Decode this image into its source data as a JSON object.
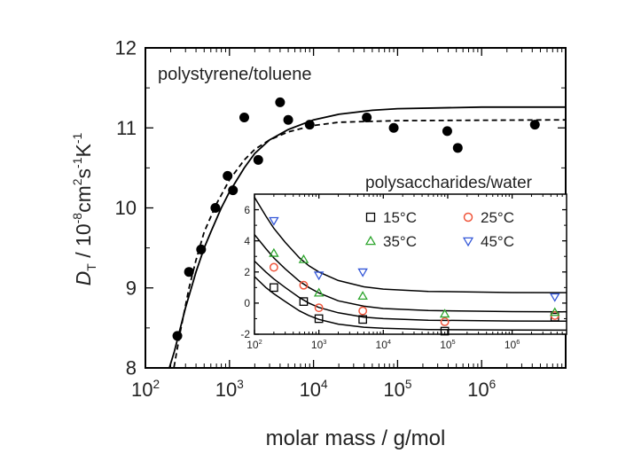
{
  "chart_data": [
    {
      "type": "scatter",
      "title": "polystyrene/toluene",
      "xlabel": "molar mass / g/mol",
      "ylabel": {
        "symbol": "D",
        "sub": "T",
        "sep": " / 10",
        "exp1": "-8",
        "unit1": "cm",
        "exp2": "2",
        "unit2": "s",
        "exp3": "-1",
        "unit3": "K",
        "exp4": "-1"
      },
      "x_scale": "log",
      "xlim": [
        100,
        10000000
      ],
      "ylim": [
        8,
        12
      ],
      "x_ticks": [
        {
          "base": "10",
          "exp": "2",
          "value": 100
        },
        {
          "base": "10",
          "exp": "3",
          "value": 1000
        },
        {
          "base": "10",
          "exp": "4",
          "value": 10000
        },
        {
          "base": "10",
          "exp": "5",
          "value": 100000
        },
        {
          "base": "10",
          "exp": "6",
          "value": 1000000
        }
      ],
      "y_ticks": [
        {
          "label": "8",
          "value": 8
        },
        {
          "label": "9",
          "value": 9
        },
        {
          "label": "10",
          "value": 10
        },
        {
          "label": "11",
          "value": 11
        },
        {
          "label": "12",
          "value": 12
        }
      ],
      "series": [
        {
          "marker": "filled-circle",
          "color": "#000000",
          "points": [
            [
              240,
              8.4
            ],
            [
              330,
              9.2
            ],
            [
              460,
              9.48
            ],
            [
              680,
              10.0
            ],
            [
              950,
              10.4
            ],
            [
              1100,
              10.22
            ],
            [
              1500,
              11.13
            ],
            [
              2200,
              10.6
            ],
            [
              4000,
              11.32
            ],
            [
              5000,
              11.1
            ],
            [
              9000,
              11.04
            ],
            [
              43000,
              11.13
            ],
            [
              90000,
              11.0
            ],
            [
              390000,
              10.96
            ],
            [
              520000,
              10.75
            ],
            [
              4300000,
              11.04
            ]
          ]
        }
      ],
      "curves": [
        {
          "style": "solid",
          "color": "#000000",
          "points": [
            [
              180,
              7.9
            ],
            [
              220,
              8.2
            ],
            [
              300,
              8.75
            ],
            [
              400,
              9.2
            ],
            [
              500,
              9.5
            ],
            [
              600,
              9.7
            ],
            [
              800,
              10.0
            ],
            [
              1000,
              10.2
            ],
            [
              1500,
              10.5
            ],
            [
              2000,
              10.68
            ],
            [
              3000,
              10.85
            ],
            [
              5000,
              10.98
            ],
            [
              10000,
              11.1
            ],
            [
              20000,
              11.17
            ],
            [
              50000,
              11.22
            ],
            [
              100000,
              11.24
            ],
            [
              1000000,
              11.26
            ],
            [
              10000000,
              11.26
            ]
          ]
        },
        {
          "style": "dashed",
          "color": "#000000",
          "points": [
            [
              210,
              7.9
            ],
            [
              260,
              8.45
            ],
            [
              330,
              9.0
            ],
            [
              400,
              9.35
            ],
            [
              500,
              9.7
            ],
            [
              700,
              10.05
            ],
            [
              1000,
              10.35
            ],
            [
              1500,
              10.6
            ],
            [
              2000,
              10.73
            ],
            [
              3000,
              10.85
            ],
            [
              5000,
              10.95
            ],
            [
              10000,
              11.03
            ],
            [
              20000,
              11.07
            ],
            [
              100000,
              11.09
            ],
            [
              10000000,
              11.1
            ]
          ]
        }
      ]
    },
    {
      "type": "scatter",
      "title": "polysaccharides/water",
      "x_scale": "log",
      "xlim": [
        100,
        7000000
      ],
      "ylim": [
        -2,
        7
      ],
      "x_ticks": [
        {
          "base": "10",
          "exp": "2",
          "value": 100
        },
        {
          "base": "10",
          "exp": "3",
          "value": 1000
        },
        {
          "base": "10",
          "exp": "4",
          "value": 10000
        },
        {
          "base": "10",
          "exp": "5",
          "value": 100000
        },
        {
          "base": "10",
          "exp": "6",
          "value": 1000000
        }
      ],
      "y_ticks": [
        {
          "label": "-2",
          "value": -2
        },
        {
          "label": "0",
          "value": 0
        },
        {
          "label": "2",
          "value": 2
        },
        {
          "label": "4",
          "value": 4
        },
        {
          "label": "6",
          "value": 6
        }
      ],
      "legend": {
        "placement": "top-right",
        "columns": 2
      },
      "series": [
        {
          "name": "15°C",
          "marker": "square",
          "color": "#000000",
          "points": [
            [
              200,
              1.0
            ],
            [
              580,
              0.1
            ],
            [
              1000,
              -1.0
            ],
            [
              4800,
              -1.05
            ],
            [
              90000,
              -1.8
            ],
            [
              4600000,
              -0.9
            ]
          ]
        },
        {
          "name": "25°C",
          "marker": "circle",
          "color": "#f0563c",
          "points": [
            [
              200,
              2.3
            ],
            [
              580,
              1.15
            ],
            [
              1000,
              -0.3
            ],
            [
              4800,
              -0.5
            ],
            [
              90000,
              -1.2
            ],
            [
              4600000,
              -0.8
            ]
          ]
        },
        {
          "name": "35°C",
          "marker": "triangle-up",
          "color": "#2ca42c",
          "points": [
            [
              200,
              3.2
            ],
            [
              580,
              2.8
            ],
            [
              1000,
              0.65
            ],
            [
              4800,
              0.45
            ],
            [
              90000,
              -0.7
            ],
            [
              4600000,
              -0.6
            ]
          ]
        },
        {
          "name": "45°C",
          "marker": "triangle-down",
          "color": "#3558d8",
          "points": [
            [
              200,
              5.3
            ],
            [
              1000,
              1.8
            ],
            [
              4800,
              2.0
            ],
            [
              4600000,
              0.4
            ]
          ]
        }
      ],
      "curves": [
        {
          "style": "solid",
          "color": "#000000",
          "points": [
            [
              100,
              6.8
            ],
            [
              150,
              5.6
            ],
            [
              200,
              4.8
            ],
            [
              300,
              3.9
            ],
            [
              500,
              2.9
            ],
            [
              700,
              2.4
            ],
            [
              1000,
              2.0
            ],
            [
              2000,
              1.45
            ],
            [
              5000,
              1.05
            ],
            [
              10000,
              0.9
            ],
            [
              50000,
              0.75
            ],
            [
              1000000,
              0.68
            ],
            [
              7000000,
              0.67
            ]
          ]
        },
        {
          "style": "solid",
          "color": "#000000",
          "points": [
            [
              100,
              4.4
            ],
            [
              150,
              3.5
            ],
            [
              200,
              2.9
            ],
            [
              300,
              2.2
            ],
            [
              500,
              1.4
            ],
            [
              700,
              1.0
            ],
            [
              1000,
              0.65
            ],
            [
              2000,
              0.15
            ],
            [
              5000,
              -0.2
            ],
            [
              10000,
              -0.35
            ],
            [
              50000,
              -0.48
            ],
            [
              1000000,
              -0.55
            ],
            [
              7000000,
              -0.56
            ]
          ]
        },
        {
          "style": "solid",
          "color": "#000000",
          "points": [
            [
              100,
              2.7
            ],
            [
              150,
              2.0
            ],
            [
              200,
              1.55
            ],
            [
              300,
              1.0
            ],
            [
              500,
              0.35
            ],
            [
              700,
              0.0
            ],
            [
              1000,
              -0.28
            ],
            [
              2000,
              -0.62
            ],
            [
              5000,
              -0.9
            ],
            [
              10000,
              -1.0
            ],
            [
              50000,
              -1.1
            ],
            [
              1000000,
              -1.15
            ],
            [
              7000000,
              -1.16
            ]
          ]
        },
        {
          "style": "solid",
          "color": "#000000",
          "points": [
            [
              100,
              1.7
            ],
            [
              150,
              1.0
            ],
            [
              200,
              0.6
            ],
            [
              300,
              0.1
            ],
            [
              500,
              -0.5
            ],
            [
              700,
              -0.8
            ],
            [
              1000,
              -1.05
            ],
            [
              2000,
              -1.35
            ],
            [
              5000,
              -1.55
            ],
            [
              10000,
              -1.62
            ],
            [
              50000,
              -1.7
            ],
            [
              1000000,
              -1.73
            ],
            [
              7000000,
              -1.74
            ]
          ]
        }
      ]
    }
  ]
}
